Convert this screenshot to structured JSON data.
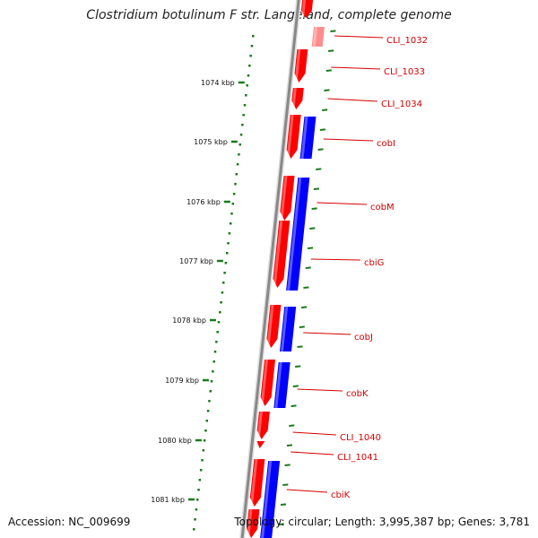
{
  "title": "Clostridium botulinum F str. Langeland, complete genome",
  "footer": {
    "accession": "Accession: NC_009699",
    "topology": "Topology: circular; Length: 3,995,387 bp; Genes: 3,781"
  },
  "colors": {
    "forward": "#ff0000",
    "reverse": "#0000ff",
    "backbone": "#888888",
    "tick": "#1a7a1a",
    "label": "#d40000"
  },
  "kbp_ticks": [
    "1074 kbp",
    "1075 kbp",
    "1076 kbp",
    "1077 kbp",
    "1078 kbp",
    "1079 kbp",
    "1080 kbp",
    "1081 kbp"
  ],
  "genes": [
    {
      "name": "CLI_1032",
      "strand": "+",
      "faded": true
    },
    {
      "name": "CLI_1033",
      "strand": "+"
    },
    {
      "name": "CLI_1034",
      "strand": "+"
    },
    {
      "name": "cobI",
      "strand": "+"
    },
    {
      "name": "cobM",
      "strand": "+"
    },
    {
      "name": "cbiG",
      "strand": "+"
    },
    {
      "name": "cobJ",
      "strand": "+"
    },
    {
      "name": "cobK",
      "strand": "+"
    },
    {
      "name": "CLI_1040",
      "strand": "+"
    },
    {
      "name": "CLI_1041",
      "strand": "+"
    },
    {
      "name": "cbiK",
      "strand": "+"
    }
  ]
}
